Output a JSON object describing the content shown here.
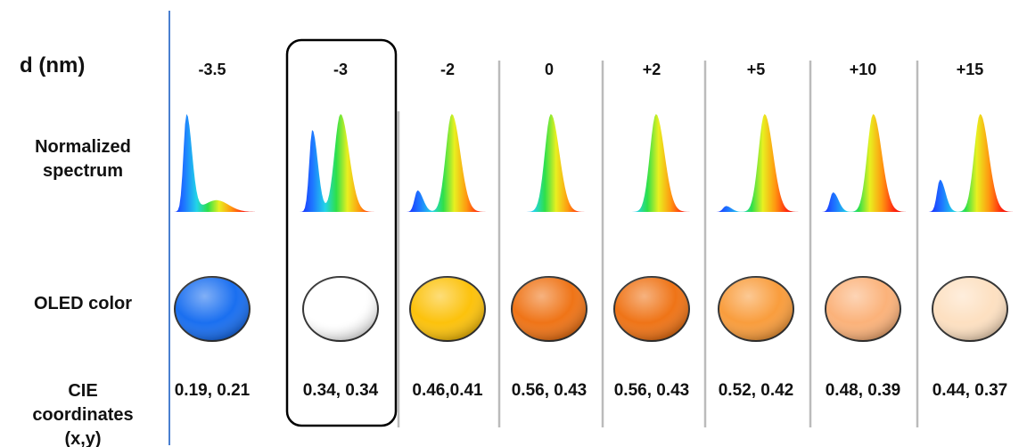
{
  "row_labels": [
    "d (nm)",
    "Normalized spectrum",
    "OLED color",
    "CIE coordinates (x,y)"
  ],
  "columns": [
    {
      "d": "-3.5",
      "cie": "0.19, 0.21",
      "color": "#1a6ff0"
    },
    {
      "d": "-3",
      "cie": "0.34, 0.34",
      "color": "#ffffff"
    },
    {
      "d": "-2",
      "cie": "0.46,0.41",
      "color": "#fcc20c"
    },
    {
      "d": "0",
      "cie": "0.56, 0.43",
      "color": "#ef7417"
    },
    {
      "d": "+2",
      "cie": "0.56, 0.43",
      "color": "#ef7417"
    },
    {
      "d": "+5",
      "cie": "0.52, 0.42",
      "color": "#f99d3d"
    },
    {
      "d": "+10",
      "cie": "0.48, 0.39",
      "color": "#fbb27a"
    },
    {
      "d": "+15",
      "cie": "0.44, 0.37",
      "color": "#fde0c1"
    }
  ]
}
